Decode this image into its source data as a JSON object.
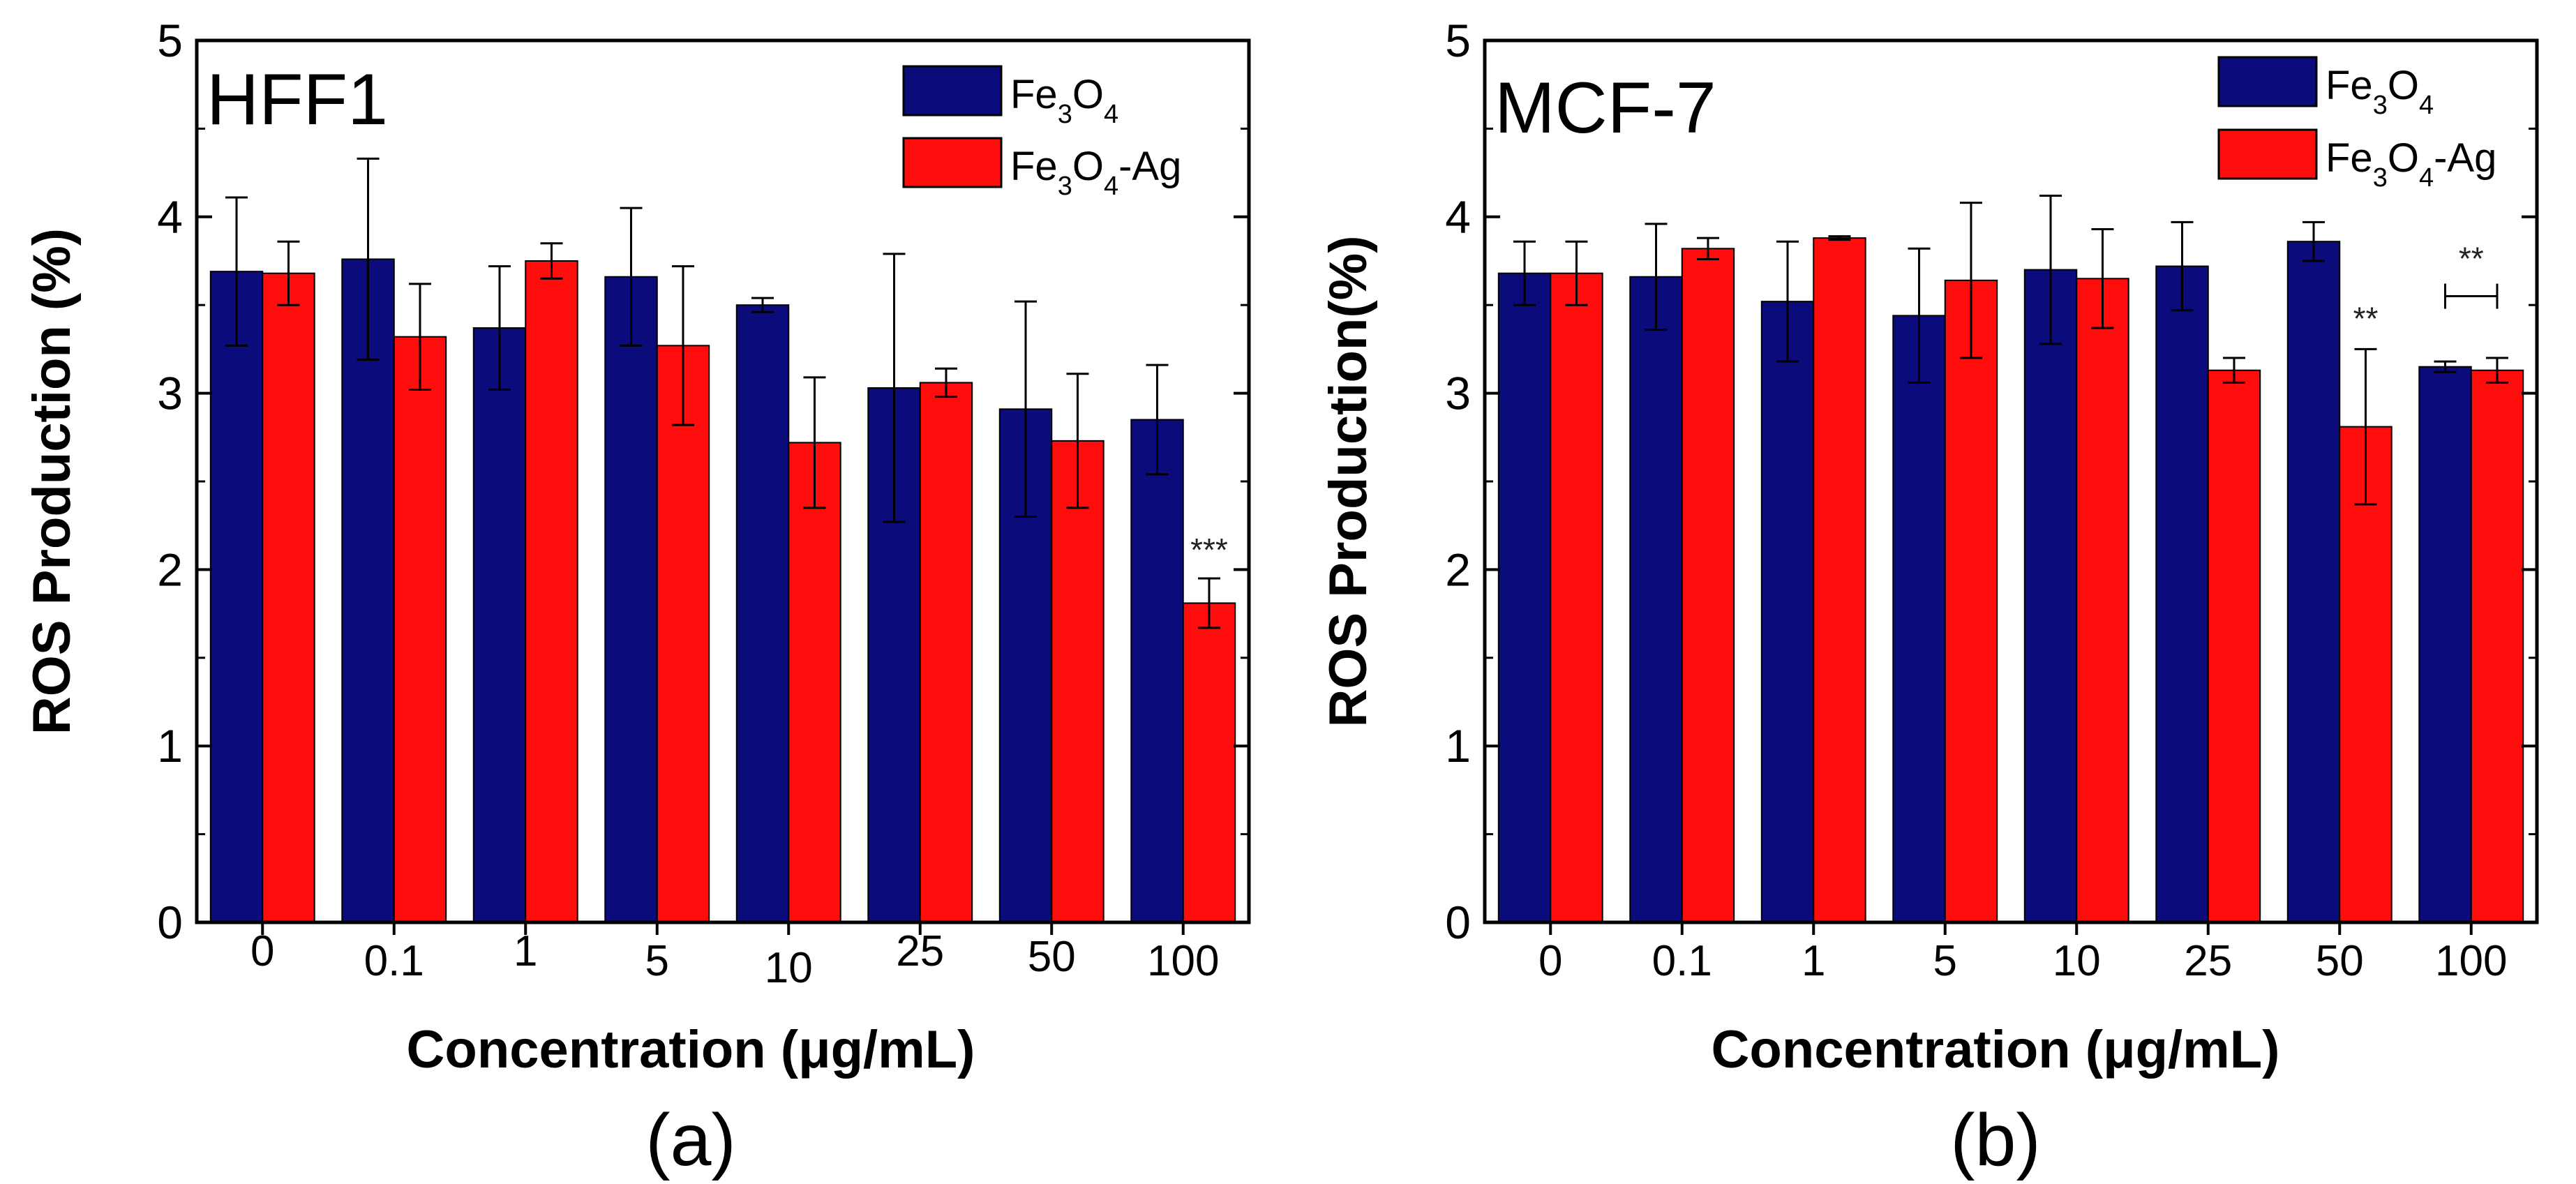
{
  "chart_data": [
    {
      "type": "bar",
      "panel_label": "(a)",
      "inset_title": "HFF1",
      "xlabel": "Concentration (μg/mL)",
      "ylabel": "ROS Production (%)",
      "ylim": [
        0,
        5
      ],
      "yticks": [
        "0",
        "1",
        "2",
        "3",
        "4",
        "5"
      ],
      "categories": [
        "0",
        "0.1",
        "1",
        "5",
        "10",
        "25",
        "50",
        "100"
      ],
      "legend_position": "top-right",
      "series": [
        {
          "name": "Fe3O4",
          "legend": {
            "base1": "Fe",
            "sub1": "3",
            "base2": "O",
            "sub2": "4",
            "suffix": ""
          },
          "color": "#0b0b7c",
          "values": [
            3.69,
            3.76,
            3.37,
            3.66,
            3.5,
            3.03,
            2.91,
            2.85
          ],
          "errors": [
            0.42,
            0.57,
            0.35,
            0.39,
            0.04,
            0.76,
            0.61,
            0.31
          ]
        },
        {
          "name": "Fe3O4-Ag",
          "legend": {
            "base1": "Fe",
            "sub1": "3",
            "base2": "O",
            "sub2": "4",
            "suffix": "-Ag"
          },
          "color": "#ff0c0c",
          "values": [
            3.68,
            3.32,
            3.75,
            3.27,
            2.72,
            3.06,
            2.73,
            1.81
          ],
          "errors": [
            0.18,
            0.3,
            0.1,
            0.45,
            0.37,
            0.08,
            0.38,
            0.14
          ]
        }
      ],
      "annotations": [
        {
          "text": "***",
          "category": 7,
          "series": 1,
          "value": 2.05
        }
      ],
      "brackets": []
    },
    {
      "type": "bar",
      "panel_label": "(b)",
      "inset_title": "MCF-7",
      "xlabel": "Concentration (μg/mL)",
      "ylabel": "ROS Production(%)",
      "ylim": [
        0,
        5
      ],
      "yticks": [
        "0",
        "1",
        "2",
        "3",
        "4",
        "5"
      ],
      "categories": [
        "0",
        "0.1",
        "1",
        "5",
        "10",
        "25",
        "50",
        "100"
      ],
      "legend_position": "top-right",
      "series": [
        {
          "name": "Fe3O4",
          "legend": {
            "base1": "Fe",
            "sub1": "3",
            "base2": "O",
            "sub2": "4",
            "suffix": ""
          },
          "color": "#0b0b7c",
          "values": [
            3.68,
            3.66,
            3.52,
            3.44,
            3.7,
            3.72,
            3.86,
            3.15
          ],
          "errors": [
            0.18,
            0.3,
            0.34,
            0.38,
            0.42,
            0.25,
            0.11,
            0.03
          ]
        },
        {
          "name": "Fe3O4-Ag",
          "legend": {
            "base1": "Fe",
            "sub1": "3",
            "base2": "O",
            "sub2": "4",
            "suffix": "-Ag"
          },
          "color": "#ff0c0c",
          "values": [
            3.68,
            3.82,
            3.88,
            3.64,
            3.65,
            3.13,
            2.81,
            3.13
          ],
          "errors": [
            0.18,
            0.06,
            0.01,
            0.44,
            0.28,
            0.07,
            0.44,
            0.07
          ]
        }
      ],
      "annotations": [
        {
          "text": "**",
          "category": 6,
          "series": 1,
          "value": 3.36
        },
        {
          "text": "**",
          "category": 7,
          "series": -1,
          "value": 3.7
        }
      ],
      "brackets": [
        {
          "category": 7,
          "value": 3.55
        }
      ]
    }
  ]
}
